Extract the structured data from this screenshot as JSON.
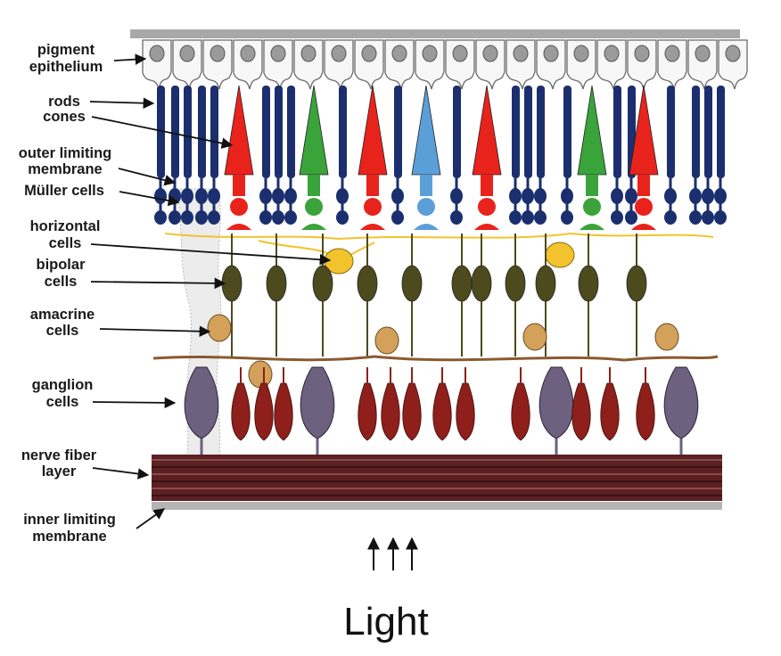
{
  "labels": [
    {
      "id": "pigment",
      "lines": [
        "pigment",
        "epithelium"
      ]
    },
    {
      "id": "rods",
      "lines": [
        "rods"
      ]
    },
    {
      "id": "cones",
      "lines": [
        "cones"
      ]
    },
    {
      "id": "outer-limiting",
      "lines": [
        "outer limiting",
        "membrane"
      ]
    },
    {
      "id": "muller",
      "lines": [
        "Müller cells"
      ]
    },
    {
      "id": "horizontal",
      "lines": [
        "horizontal",
        "cells"
      ]
    },
    {
      "id": "bipolar",
      "lines": [
        "bipolar",
        "cells"
      ]
    },
    {
      "id": "amacrine",
      "lines": [
        "amacrine",
        "cells"
      ]
    },
    {
      "id": "ganglion",
      "lines": [
        "ganglion",
        "cells"
      ]
    },
    {
      "id": "nerve-fiber",
      "lines": [
        "nerve fiber",
        "layer"
      ]
    },
    {
      "id": "inner-limiting",
      "lines": [
        "inner limiting",
        "membrane"
      ]
    }
  ],
  "caption": {
    "text": "Light"
  },
  "colors": {
    "rod": "#1b2f6e",
    "cone_red": "#e8231c",
    "cone_green": "#3aa33a",
    "cone_blue": "#5a9fd8",
    "horizontal": "#f2c32c",
    "bipolar": "#4d4a1e",
    "amacrine": "#d4a15a",
    "ganglion_large": "#6e607f",
    "ganglion_small": "#8e1f1a",
    "nerve_fiber": "#5c1f22",
    "muller": "#e8e8e8"
  },
  "cones": [
    {
      "color": "cone_red"
    },
    {
      "color": "cone_green"
    },
    {
      "color": "cone_red"
    },
    {
      "color": "cone_blue"
    },
    {
      "color": "cone_red"
    },
    {
      "color": "cone_green"
    },
    {
      "color": "cone_red"
    }
  ],
  "rod_count": 21,
  "horizontal_cell_count": 2,
  "bipolar_cell_count": 11,
  "amacrine_cell_count": 5,
  "large_ganglion_cell_count": 4,
  "small_ganglion_cell_count": 12
}
